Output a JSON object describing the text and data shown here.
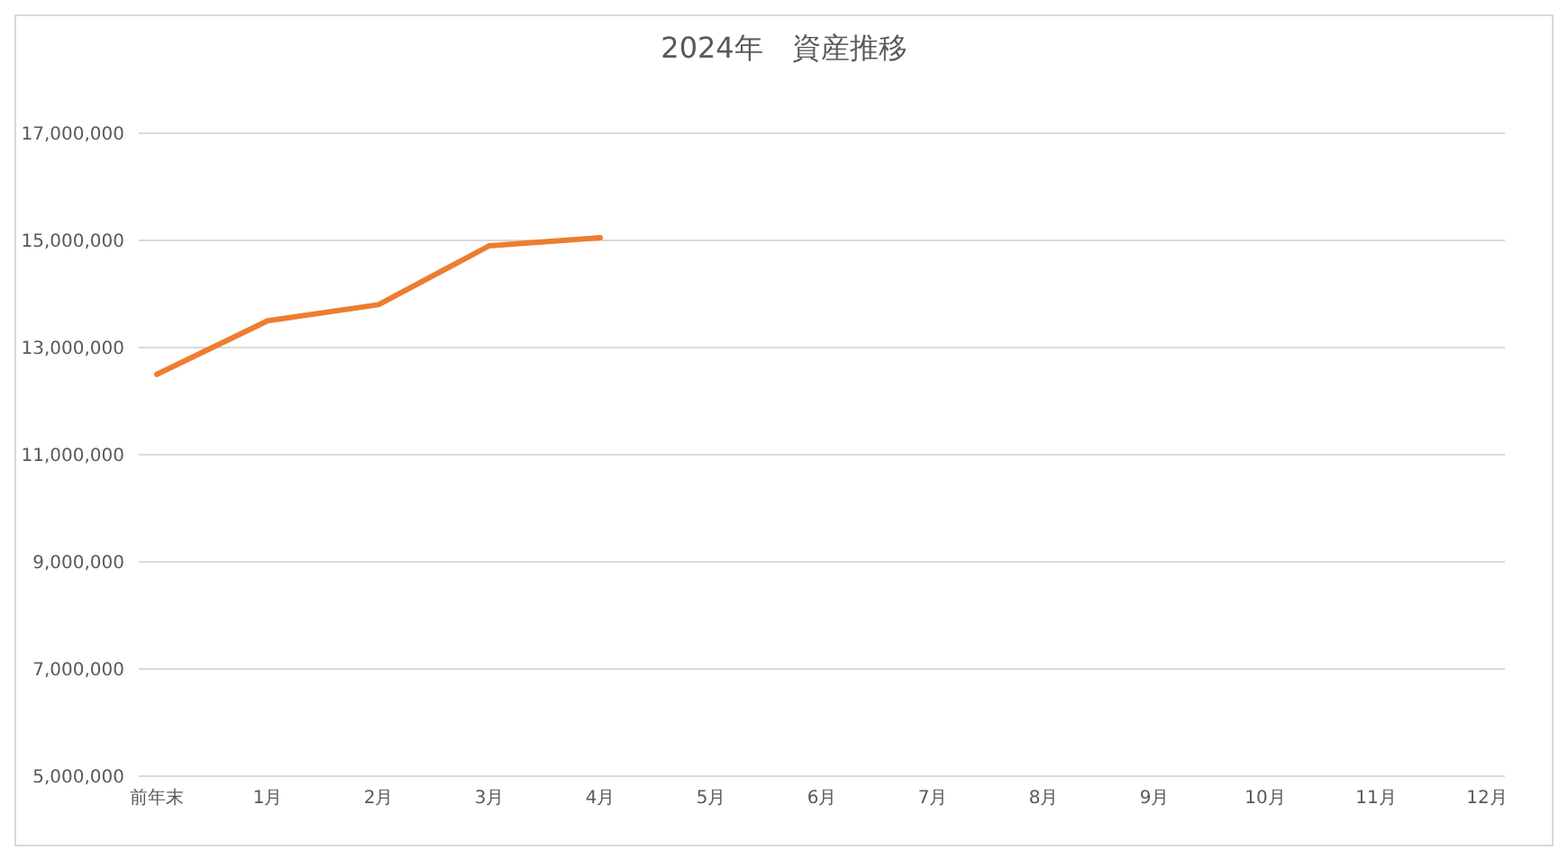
{
  "chart_data": {
    "type": "line",
    "title": "2024年　資産推移",
    "categories": [
      "前年末",
      "1月",
      "2月",
      "3月",
      "4月",
      "5月",
      "6月",
      "7月",
      "8月",
      "9月",
      "10月",
      "11月",
      "12月"
    ],
    "series": [
      {
        "color": "#ed7d31",
        "values": [
          12500000,
          13500000,
          13800000,
          14900000,
          15050000,
          null,
          null,
          null,
          null,
          null,
          null,
          null,
          null
        ]
      }
    ],
    "ylim": [
      5000000,
      17000000
    ],
    "yticks": [
      {
        "value": 5000000,
        "label": "5,000,000"
      },
      {
        "value": 7000000,
        "label": "7,000,000"
      },
      {
        "value": 9000000,
        "label": "9,000,000"
      },
      {
        "value": 11000000,
        "label": "11,000,000"
      },
      {
        "value": 13000000,
        "label": "13,000,000"
      },
      {
        "value": 15000000,
        "label": "15,000,000"
      },
      {
        "value": 17000000,
        "label": "17,000,000"
      }
    ],
    "grid": "y",
    "legend": false,
    "marker": "none",
    "line_style": "solid"
  }
}
